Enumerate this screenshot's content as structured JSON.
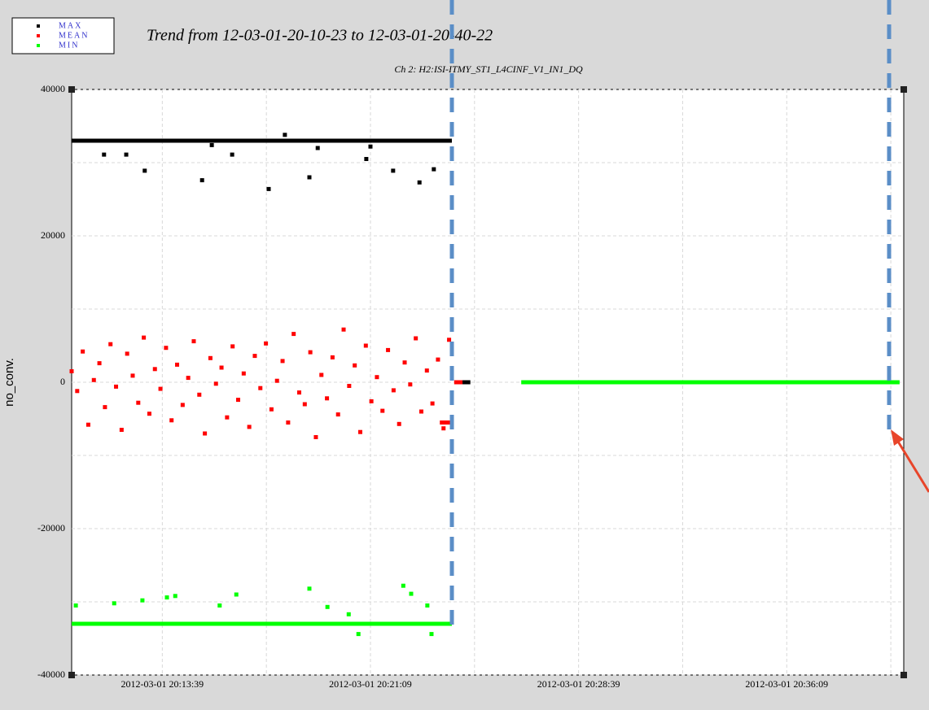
{
  "chart_data": {
    "type": "scatter",
    "title": "Trend from 12-03-01-20-10-23 to 12-03-01-20-40-22",
    "subtitle": "Ch 2: H2:ISI-ITMY_ST1_L4CINF_V1_IN1_DQ",
    "y_label": "no_conv.",
    "xlim": [
      0,
      1799
    ],
    "xticks": [
      {
        "value": 196,
        "label": "2012-03-01 20:13:39"
      },
      {
        "value": 646,
        "label": "2012-03-01 20:21:09"
      },
      {
        "value": 1096,
        "label": "2012-03-01 20:28:39"
      },
      {
        "value": 1546,
        "label": "2012-03-01 20:36:09"
      }
    ],
    "xminor": [
      421,
      871,
      1321,
      1771
    ],
    "ylim": [
      -40000,
      40000
    ],
    "yticks": [
      -40000,
      -20000,
      0,
      20000,
      40000
    ],
    "yminor": [
      -30000,
      -10000,
      10000,
      30000
    ],
    "grid": true,
    "legend": "top-left",
    "series": [
      {
        "name": "MAX",
        "color": "#000000",
        "mode": "markers",
        "x": [
          70,
          118,
          158,
          282,
          303,
          347,
          426,
          461,
          514,
          532,
          637,
          646,
          695,
          752,
          783
        ],
        "values": [
          31100,
          31100,
          28900,
          27600,
          32400,
          31100,
          26400,
          33800,
          28000,
          32000,
          30500,
          32200,
          28900,
          27300,
          29100
        ]
      },
      {
        "name": "MEAN",
        "color": "#ff0000",
        "mode": "markers",
        "x": [
          0,
          12,
          24,
          36,
          48,
          60,
          72,
          84,
          96,
          108,
          120,
          132,
          144,
          156,
          168,
          180,
          192,
          204,
          216,
          228,
          240,
          252,
          264,
          276,
          288,
          300,
          312,
          324,
          336,
          348,
          360,
          372,
          384,
          396,
          408,
          420,
          432,
          444,
          456,
          468,
          480,
          492,
          504,
          516,
          528,
          540,
          552,
          564,
          576,
          588,
          600,
          612,
          624,
          636,
          648,
          660,
          672,
          684,
          696,
          708,
          720,
          732,
          744,
          756,
          768,
          780,
          792,
          804,
          816
        ],
        "values": [
          1500,
          -1200,
          4200,
          -5800,
          300,
          2600,
          -3400,
          5200,
          -600,
          -6500,
          3900,
          900,
          -2800,
          6100,
          -4300,
          1800,
          -900,
          4700,
          -5200,
          2400,
          -3100,
          600,
          5600,
          -1700,
          -7000,
          3300,
          -200,
          2000,
          -4800,
          4900,
          -2400,
          1200,
          -6100,
          3600,
          -800,
          5300,
          -3700,
          200,
          2900,
          -5500,
          6600,
          -1400,
          -3000,
          4100,
          -7500,
          1000,
          -2200,
          3400,
          -4400,
          7200,
          -500,
          2300,
          -6800,
          5000,
          -2600,
          700,
          -3900,
          4400,
          -1100,
          -5700,
          2700,
          -300,
          6000,
          -4000,
          1600,
          -2900,
          3100,
          -6300,
          5800
        ]
      },
      {
        "name": "MIN",
        "color": "#00ff00",
        "mode": "markers",
        "x": [
          9,
          92,
          153,
          206,
          224,
          320,
          356,
          514,
          553,
          599,
          620,
          717,
          734,
          769,
          778
        ],
        "values": [
          -30500,
          -30200,
          -29800,
          -29400,
          -29200,
          -30500,
          -29000,
          -28200,
          -30700,
          -31700,
          -34400,
          -27800,
          -28900,
          -30500,
          -34400
        ]
      },
      {
        "color": "#000000",
        "mode": "line",
        "x": [
          0,
          822
        ],
        "values": [
          33000,
          33000
        ]
      },
      {
        "color": "#00ff00",
        "mode": "line",
        "x": [
          0,
          822
        ],
        "values": [
          -33000,
          -33000
        ]
      },
      {
        "color": "#ff0000",
        "mode": "line",
        "x": [
          796,
          822
        ],
        "values": [
          -5500,
          -5500
        ]
      },
      {
        "color": "#ff0000",
        "mode": "line",
        "x": [
          827,
          845
        ],
        "values": [
          0,
          0
        ]
      },
      {
        "color": "#000000",
        "mode": "line",
        "x": [
          845,
          862
        ],
        "values": [
          0,
          0
        ]
      },
      {
        "color": "#00ff00",
        "mode": "line",
        "x": [
          972,
          1790
        ],
        "values": [
          0,
          0
        ]
      }
    ]
  }
}
